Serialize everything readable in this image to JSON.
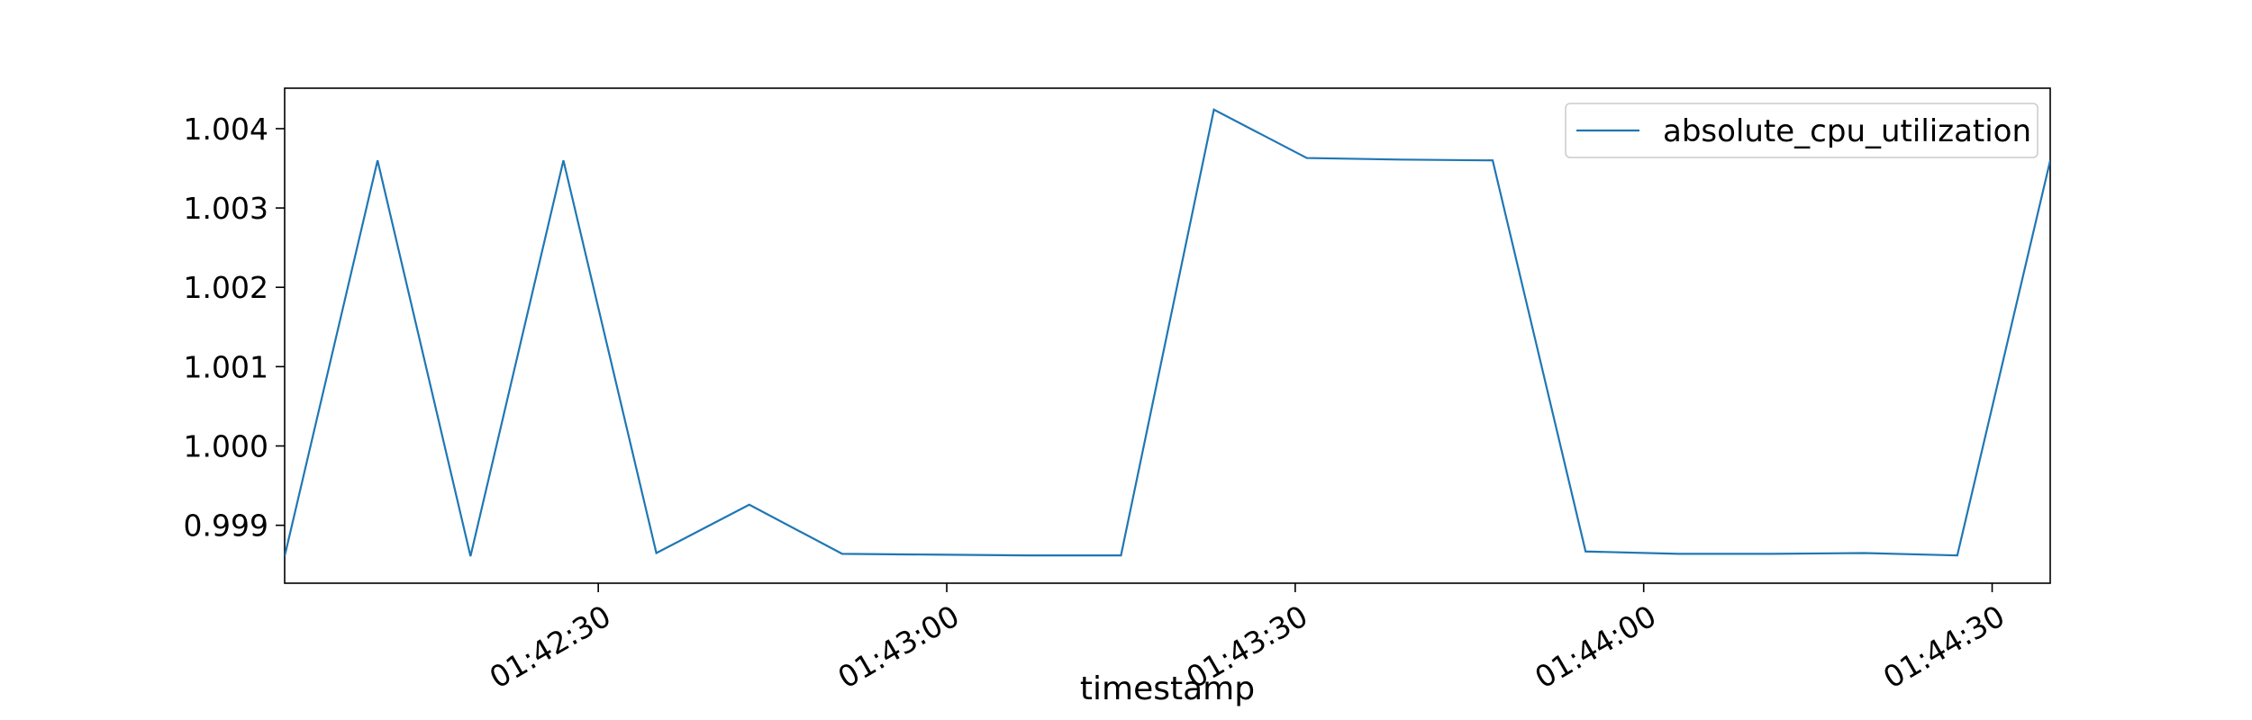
{
  "chart_data": {
    "type": "line",
    "title": "",
    "xlabel": "timestamp",
    "ylabel": "",
    "x_tick_labels": [
      "01:42:30",
      "01:43:00",
      "01:43:30",
      "01:44:00",
      "01:44:30"
    ],
    "y_tick_labels": [
      "0.999",
      "1.000",
      "1.001",
      "1.002",
      "1.003",
      "1.004"
    ],
    "y_ticks": [
      0.999,
      1.0,
      1.001,
      1.002,
      1.003,
      1.004
    ],
    "ylim": [
      0.99827,
      1.00451
    ],
    "xlim": [
      "01:42:03",
      "01:44:35"
    ],
    "x_ticks": [
      "01:42:30",
      "01:43:00",
      "01:43:30",
      "01:44:00",
      "01:44:30"
    ],
    "grid": false,
    "legend_position": "top-right",
    "colors": {
      "series": "#1f77b4",
      "axes": "#000000",
      "legend_border": "#cccccc"
    },
    "series": [
      {
        "name": "absolute_cpu_utilization",
        "x": [
          "01:42:03",
          "01:42:11",
          "01:42:19",
          "01:42:27",
          "01:42:35",
          "01:42:43",
          "01:42:51",
          "01:42:59",
          "01:43:07",
          "01:43:15",
          "01:43:23",
          "01:43:31",
          "01:43:39",
          "01:43:47",
          "01:43:55",
          "01:44:03",
          "01:44:11",
          "01:44:19",
          "01:44:27",
          "01:44:35"
        ],
        "values": [
          0.99861,
          1.0036,
          0.99861,
          1.0036,
          0.99865,
          0.99926,
          0.99864,
          0.99863,
          0.99862,
          0.99862,
          1.00424,
          1.00363,
          1.00361,
          1.0036,
          0.99867,
          0.99864,
          0.99864,
          0.99865,
          0.99862,
          1.0036
        ]
      }
    ]
  }
}
